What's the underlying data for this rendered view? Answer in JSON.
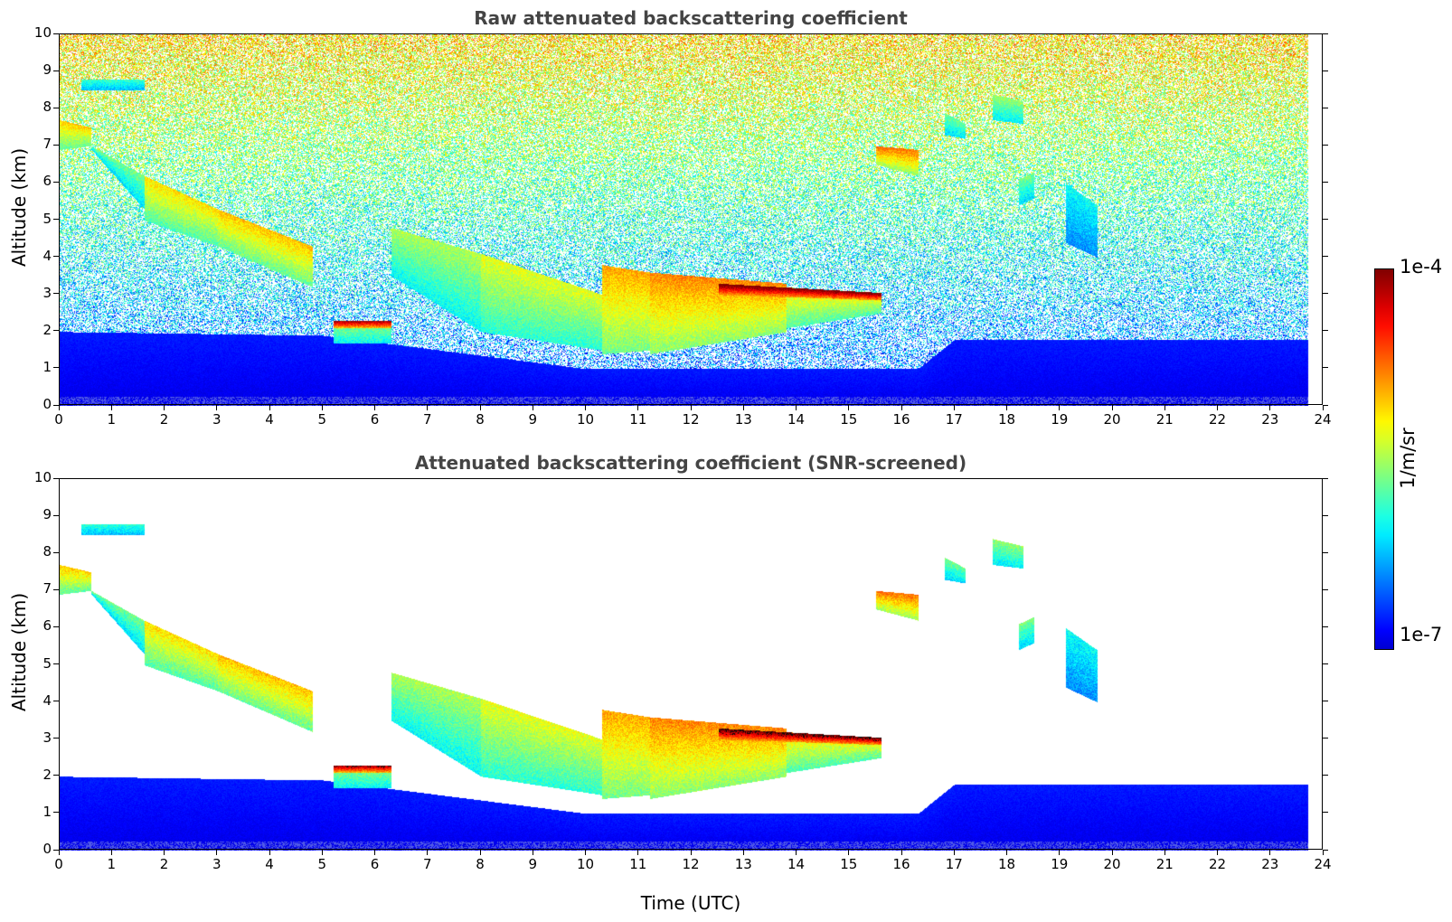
{
  "chart_data": [
    {
      "type": "heatmap",
      "title": "Raw attenuated backscattering coefficient",
      "xlabel": "",
      "ylabel": "Altitude (km)",
      "xlim": [
        0,
        24
      ],
      "ylim": [
        0,
        10
      ],
      "x_ticks": [
        "0",
        "1",
        "2",
        "3",
        "4",
        "5",
        "6",
        "7",
        "8",
        "9",
        "10",
        "11",
        "12",
        "13",
        "14",
        "15",
        "16",
        "17",
        "18",
        "19",
        "20",
        "21",
        "22",
        "23",
        "24"
      ],
      "y_ticks": [
        "0",
        "1",
        "2",
        "3",
        "4",
        "5",
        "6",
        "7",
        "8",
        "9",
        "10"
      ],
      "data_end_time": 23.7,
      "screened": false,
      "layers": [
        {
          "x": [
            0.0,
            0.6
          ],
          "base": [
            6.9,
            7.0
          ],
          "top": [
            7.7,
            7.5
          ],
          "value": 0.62
        },
        {
          "x": [
            0.6,
            1.6
          ],
          "base": [
            6.9,
            5.3
          ],
          "top": [
            7.0,
            6.2
          ],
          "value": 0.45
        },
        {
          "x": [
            1.6,
            3.0
          ],
          "base": [
            5.0,
            4.3
          ],
          "top": [
            6.2,
            5.3
          ],
          "value": 0.6
        },
        {
          "x": [
            3.0,
            4.8
          ],
          "base": [
            4.3,
            3.2
          ],
          "top": [
            5.3,
            4.3
          ],
          "value": 0.63
        },
        {
          "x": [
            5.2,
            6.3
          ],
          "base": [
            1.7,
            1.7
          ],
          "top": [
            2.3,
            2.3
          ],
          "value": 0.5
        },
        {
          "x": [
            5.2,
            6.3
          ],
          "base": [
            2.1,
            2.1
          ],
          "top": [
            2.3,
            2.3
          ],
          "value": 0.9
        },
        {
          "x": [
            6.3,
            8.0
          ],
          "base": [
            3.5,
            2.0
          ],
          "top": [
            4.8,
            4.1
          ],
          "value": 0.5
        },
        {
          "x": [
            8.0,
            10.3
          ],
          "base": [
            2.0,
            1.5
          ],
          "top": [
            4.1,
            3.0
          ],
          "value": 0.55
        },
        {
          "x": [
            10.3,
            11.2
          ],
          "base": [
            1.4,
            1.5
          ],
          "top": [
            3.8,
            3.6
          ],
          "value": 0.65
        },
        {
          "x": [
            11.2,
            13.8
          ],
          "base": [
            1.4,
            2.0
          ],
          "top": [
            3.6,
            3.3
          ],
          "value": 0.68
        },
        {
          "x": [
            13.8,
            15.6
          ],
          "base": [
            2.1,
            2.5
          ],
          "top": [
            3.2,
            3.0
          ],
          "value": 0.6
        },
        {
          "x": [
            12.5,
            15.6
          ],
          "base": [
            3.0,
            2.85
          ],
          "top": [
            3.3,
            3.05
          ],
          "value": 0.95
        },
        {
          "x": [
            15.5,
            16.3
          ],
          "base": [
            6.5,
            6.2
          ],
          "top": [
            7.0,
            6.9
          ],
          "value": 0.7
        },
        {
          "x": [
            16.8,
            17.2
          ],
          "base": [
            7.3,
            7.2
          ],
          "top": [
            7.9,
            7.6
          ],
          "value": 0.45
        },
        {
          "x": [
            17.7,
            18.3
          ],
          "base": [
            7.7,
            7.6
          ],
          "top": [
            8.4,
            8.2
          ],
          "value": 0.48
        },
        {
          "x": [
            18.2,
            18.5
          ],
          "base": [
            5.4,
            5.6
          ],
          "top": [
            6.1,
            6.3
          ],
          "value": 0.45
        },
        {
          "x": [
            19.1,
            19.7
          ],
          "base": [
            4.4,
            4.0
          ],
          "top": [
            6.0,
            5.4
          ],
          "value": 0.35
        },
        {
          "x": [
            0.4,
            1.6
          ],
          "base": [
            8.5,
            8.5
          ],
          "top": [
            8.8,
            8.8
          ],
          "value": 0.4
        }
      ],
      "boundary_layer": [
        {
          "x": 0,
          "top": 2.0
        },
        {
          "x": 5,
          "top": 1.9
        },
        {
          "x": 10,
          "top": 1.0
        },
        {
          "x": 16.3,
          "top": 1.0
        },
        {
          "x": 17,
          "top": 1.8
        },
        {
          "x": 24,
          "top": 1.8
        }
      ]
    },
    {
      "type": "heatmap",
      "title": "Attenuated backscattering coefficient (SNR-screened)",
      "xlabel": "Time (UTC)",
      "ylabel": "Altitude (km)",
      "xlim": [
        0,
        24
      ],
      "ylim": [
        0,
        10
      ],
      "x_ticks": [
        "0",
        "1",
        "2",
        "3",
        "4",
        "5",
        "6",
        "7",
        "8",
        "9",
        "10",
        "11",
        "12",
        "13",
        "14",
        "15",
        "16",
        "17",
        "18",
        "19",
        "20",
        "21",
        "22",
        "23",
        "24"
      ],
      "y_ticks": [
        "0",
        "1",
        "2",
        "3",
        "4",
        "5",
        "6",
        "7",
        "8",
        "9",
        "10"
      ],
      "data_end_time": 23.7,
      "screened": true,
      "layers": "same as raw panel, noise removed",
      "boundary_layer": [
        {
          "x": 0,
          "top": 2.0
        },
        {
          "x": 5,
          "top": 1.9
        },
        {
          "x": 10,
          "top": 1.0
        },
        {
          "x": 16.3,
          "top": 1.0
        },
        {
          "x": 17,
          "top": 1.8
        },
        {
          "x": 24,
          "top": 1.8
        }
      ]
    }
  ],
  "colorbar": {
    "max_label": "1e-4",
    "min_label": "1e-7",
    "unit": "1/m/sr",
    "colormap": "jet"
  }
}
